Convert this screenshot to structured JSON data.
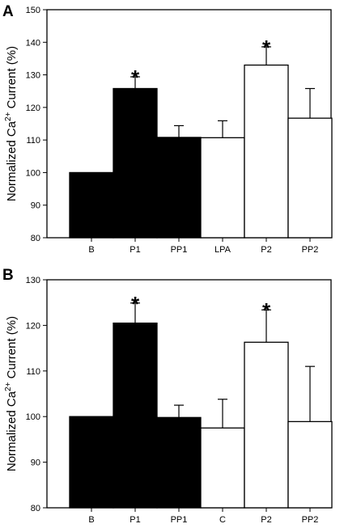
{
  "chart_data": [
    {
      "type": "bar",
      "panel_label": "A",
      "ylabel": {
        "prefix": "Normalized Ca",
        "superscript": "2+",
        "suffix": " Current (%)"
      },
      "ylim": [
        80,
        150
      ],
      "yticks": [
        80,
        90,
        100,
        110,
        120,
        130,
        140,
        150
      ],
      "categories": [
        "B",
        "P1",
        "PP1",
        "LPA",
        "P2",
        "PP2"
      ],
      "values": [
        100,
        125.8,
        110.8,
        110.7,
        133,
        116.7
      ],
      "errors": [
        0,
        3.6,
        3.6,
        5.2,
        5.6,
        9.1
      ],
      "fill": [
        "#000000",
        "#000000",
        "#000000",
        "#ffffff",
        "#ffffff",
        "#ffffff"
      ],
      "significance": [
        "",
        "*",
        "",
        "",
        "*",
        ""
      ],
      "grid": false
    },
    {
      "type": "bar",
      "panel_label": "B",
      "ylabel": {
        "prefix": "Normalized Ca",
        "superscript": "2+",
        "suffix": " Current (%)"
      },
      "ylim": [
        80,
        130
      ],
      "yticks": [
        80,
        90,
        100,
        110,
        120,
        130
      ],
      "categories": [
        "B",
        "P1",
        "PP1",
        "C",
        "P2",
        "PP2"
      ],
      "values": [
        100,
        120.5,
        99.8,
        97.5,
        116.3,
        98.9
      ],
      "errors": [
        0,
        4.4,
        2.7,
        6.3,
        7.1,
        12.1
      ],
      "fill": [
        "#000000",
        "#000000",
        "#000000",
        "#ffffff",
        "#ffffff",
        "#ffffff"
      ],
      "significance": [
        "",
        "*",
        "",
        "",
        "*",
        ""
      ],
      "grid": false
    }
  ]
}
